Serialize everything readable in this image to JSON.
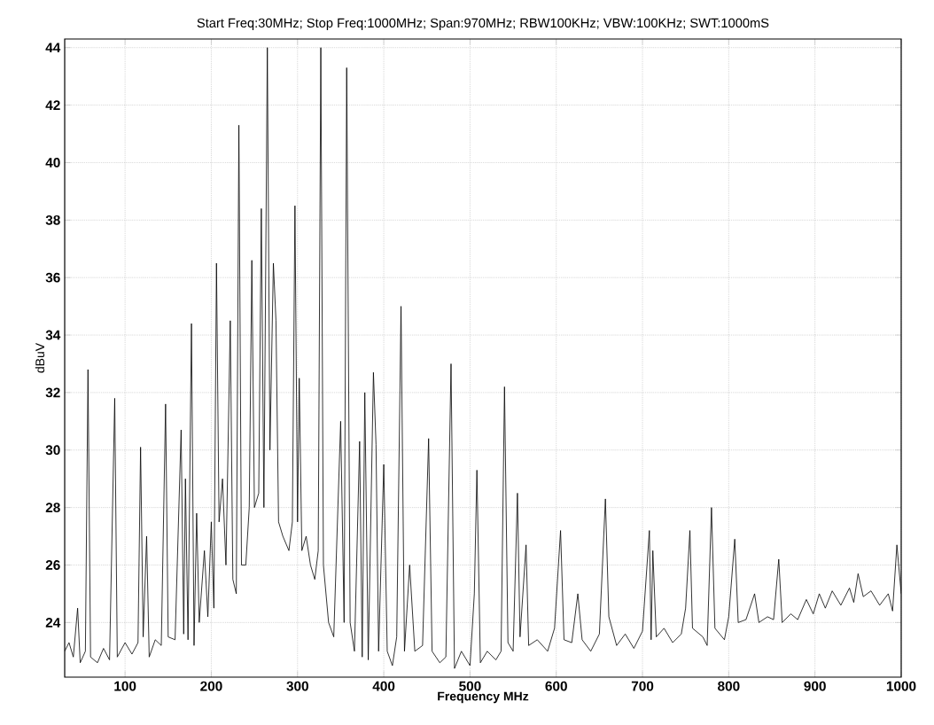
{
  "chart_data": {
    "type": "line",
    "title": "Start Freq:30MHz; Stop Freq:1000MHz; Span:970MHz; RBW100KHz; VBW:100KHz; SWT:1000mS",
    "xlabel": "Frequency MHz",
    "ylabel": "dBuV",
    "xlim": [
      30,
      1000
    ],
    "ylim": [
      22.1,
      44.3
    ],
    "xticks": [
      100,
      200,
      300,
      400,
      500,
      600,
      700,
      800,
      900,
      1000
    ],
    "yticks": [
      24,
      26,
      28,
      30,
      32,
      34,
      36,
      38,
      40,
      42,
      44
    ],
    "grid": true,
    "x": [
      30,
      35,
      40,
      45,
      48,
      54,
      57,
      60,
      68,
      75,
      82,
      88,
      91,
      100,
      108,
      115,
      118,
      121,
      125,
      128,
      135,
      142,
      147,
      150,
      158,
      165,
      168,
      170,
      173,
      177,
      180,
      183,
      186,
      192,
      196,
      200,
      203,
      206,
      209,
      213,
      217,
      222,
      225,
      229,
      232,
      235,
      240,
      244,
      247,
      250,
      255,
      258,
      261,
      265,
      268,
      272,
      275,
      278,
      283,
      290,
      294,
      297,
      300,
      302,
      305,
      310,
      315,
      320,
      324,
      327,
      330,
      336,
      342,
      350,
      354,
      357,
      361,
      366,
      372,
      375,
      378,
      382,
      388,
      391,
      394,
      400,
      404,
      410,
      415,
      420,
      424,
      430,
      436,
      445,
      452,
      456,
      465,
      472,
      478,
      482,
      490,
      500,
      505,
      508,
      512,
      520,
      530,
      536,
      540,
      544,
      550,
      555,
      558,
      565,
      568,
      578,
      590,
      598,
      605,
      609,
      618,
      625,
      630,
      640,
      650,
      657,
      661,
      670,
      680,
      690,
      700,
      708,
      710,
      712,
      716,
      725,
      735,
      745,
      750,
      755,
      758,
      770,
      775,
      780,
      784,
      795,
      800,
      807,
      811,
      820,
      830,
      835,
      845,
      852,
      858,
      862,
      872,
      880,
      890,
      898,
      905,
      912,
      920,
      930,
      940,
      945,
      950,
      956,
      965,
      975,
      985,
      990,
      995,
      1000
    ],
    "series": [
      {
        "color": "#000000",
        "values": [
          23.0,
          23.3,
          22.8,
          24.5,
          22.6,
          23.0,
          32.8,
          22.8,
          22.6,
          23.1,
          22.7,
          31.8,
          22.8,
          23.3,
          22.9,
          23.3,
          30.1,
          23.5,
          27.0,
          22.8,
          23.4,
          23.2,
          31.6,
          23.5,
          23.4,
          30.7,
          23.6,
          29.0,
          23.4,
          34.4,
          23.2,
          27.8,
          24.0,
          26.5,
          24.2,
          27.5,
          24.5,
          36.5,
          27.5,
          29.0,
          26.0,
          34.5,
          25.5,
          25.0,
          41.3,
          26.0,
          26.0,
          28.0,
          36.6,
          28.0,
          28.5,
          38.4,
          28.0,
          44.0,
          30.0,
          36.5,
          34.5,
          27.5,
          27.0,
          26.5,
          27.5,
          38.5,
          27.5,
          32.5,
          26.5,
          27.0,
          26.0,
          25.5,
          26.5,
          44.0,
          26.0,
          24.0,
          23.5,
          31.0,
          24.0,
          43.3,
          24.0,
          23.0,
          30.3,
          22.8,
          32.0,
          22.7,
          32.7,
          30.2,
          23.0,
          29.5,
          23.0,
          22.5,
          23.5,
          35.0,
          23.0,
          26.0,
          23.0,
          23.2,
          30.4,
          23.0,
          22.6,
          22.8,
          33.0,
          22.4,
          23.0,
          22.5,
          25.0,
          29.3,
          22.6,
          23.0,
          22.7,
          23.0,
          32.2,
          23.3,
          23.0,
          28.5,
          23.5,
          26.7,
          23.2,
          23.4,
          23.0,
          23.8,
          27.2,
          23.4,
          23.3,
          25.0,
          23.4,
          23.0,
          23.6,
          28.3,
          24.2,
          23.2,
          23.6,
          23.1,
          23.7,
          27.2,
          23.4,
          26.5,
          23.5,
          23.8,
          23.3,
          23.6,
          24.5,
          27.2,
          23.8,
          23.5,
          23.2,
          28.0,
          23.8,
          23.4,
          24.2,
          26.9,
          24.0,
          24.1,
          25.0,
          24.0,
          24.2,
          24.1,
          26.2,
          24.0,
          24.3,
          24.1,
          24.8,
          24.3,
          25.0,
          24.5,
          25.1,
          24.6,
          25.2,
          24.7,
          25.7,
          24.9,
          25.1,
          24.6,
          25.0,
          24.4,
          26.7,
          25.0
        ]
      }
    ]
  }
}
